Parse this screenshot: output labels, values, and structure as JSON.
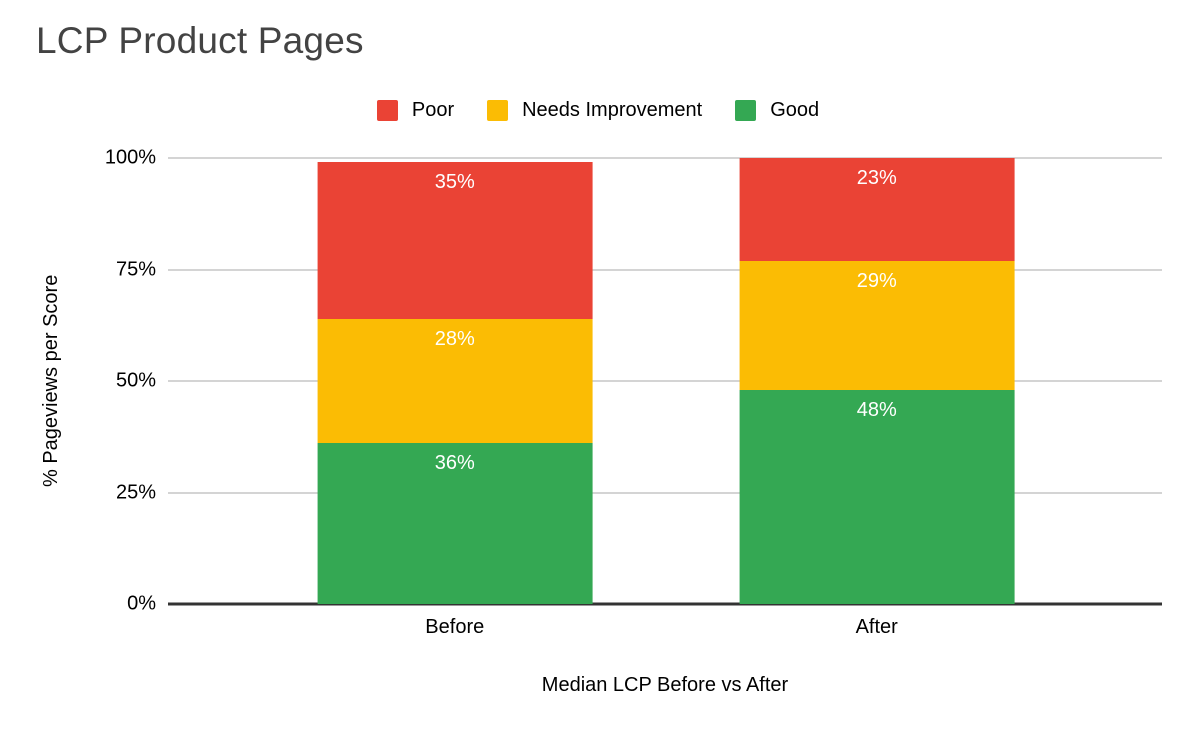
{
  "chart_data": {
    "type": "bar",
    "stacked": true,
    "title": "LCP Product Pages",
    "xlabel": "Median LCP Before vs After",
    "ylabel": "% Pageviews per Score",
    "categories": [
      "Before",
      "After"
    ],
    "series": [
      {
        "name": "Good",
        "color": "#34A853",
        "values": [
          36,
          48
        ]
      },
      {
        "name": "Needs Improvement",
        "color": "#FBBC04",
        "values": [
          28,
          29
        ]
      },
      {
        "name": "Poor",
        "color": "#EA4335",
        "values": [
          35,
          23
        ]
      }
    ],
    "legend": {
      "position": "top",
      "order": [
        "Poor",
        "Needs Improvement",
        "Good"
      ]
    },
    "y_ticks": [
      {
        "label": "0%",
        "value": 0
      },
      {
        "label": "25%",
        "value": 25
      },
      {
        "label": "50%",
        "value": 50
      },
      {
        "label": "75%",
        "value": 75
      },
      {
        "label": "100%",
        "value": 100
      }
    ],
    "ylim": [
      0,
      100
    ],
    "grid": true,
    "data_label_suffix": "%",
    "data_label_color": "#ffffff"
  },
  "colors": {
    "background": "#ffffff",
    "title_text": "#434343",
    "axis_text": "#000000",
    "gridline": "#d4d4d4",
    "axis_line": "#333333"
  }
}
